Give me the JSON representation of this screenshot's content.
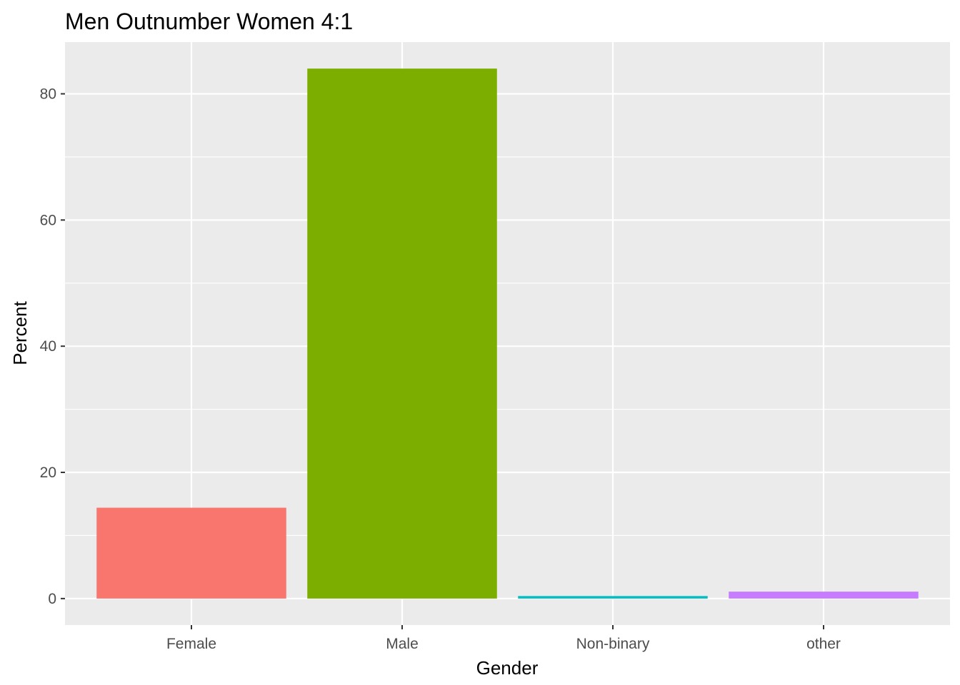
{
  "chart_data": {
    "type": "bar",
    "title": "Men Outnumber Women 4:1",
    "xlabel": "Gender",
    "ylabel": "Percent",
    "categories": [
      "Female",
      "Male",
      "Non-binary",
      "other"
    ],
    "values": [
      14.4,
      84.0,
      0.4,
      1.1
    ],
    "colors": [
      "#F8766D",
      "#7CAE00",
      "#00BFC4",
      "#C77CFF"
    ],
    "ylim": [
      -4.2,
      88.2
    ],
    "yticks": [
      0,
      20,
      40,
      60,
      80
    ],
    "ytick_labels": [
      "0",
      "20",
      "40",
      "60",
      "80"
    ],
    "grid": true,
    "legend": "none",
    "panel_background": "#EBEBEB",
    "grid_color": "#FFFFFF"
  }
}
